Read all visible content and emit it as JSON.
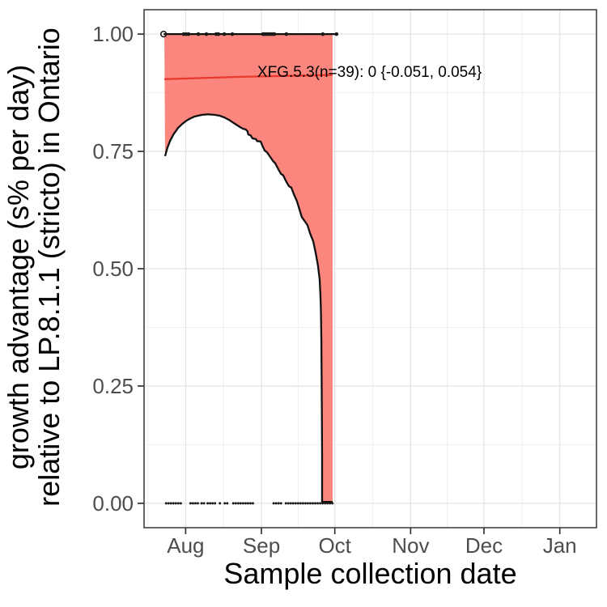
{
  "figure_titles": {
    "y_axis_title": "growth advantage (s% per day)\nrelative to LP.8.1.1 (stricto) in Ontario",
    "x_axis_title": "Sample collection date"
  },
  "chart_data": {
    "type": "line",
    "title": "",
    "xlabel": "Sample collection date",
    "ylabel": "growth advantage (s% per day) relative to LP.8.1.1 (stricto) in Ontario",
    "x_tick_labels": [
      "Aug",
      "Sep",
      "Oct",
      "Nov",
      "Dec",
      "Jan"
    ],
    "x_tick_days": [
      17,
      48,
      78,
      109,
      139,
      170
    ],
    "x_minor_days": [
      1.5,
      32.5,
      63,
      93.5,
      124,
      154.5
    ],
    "xlim_days": [
      0,
      185
    ],
    "x_day0": "Jul 15",
    "y_tick_labels": [
      "0.00",
      "0.25",
      "0.50",
      "0.75",
      "1.00"
    ],
    "y_tick_values": [
      0,
      0.25,
      0.5,
      0.75,
      1
    ],
    "y_minor_values": [
      0.125,
      0.375,
      0.625,
      0.875
    ],
    "ylim": [
      -0.052,
      1.052
    ],
    "grid": true,
    "legend": false,
    "annotation": {
      "text": "XFG.5.3(n=39): 0 {-0.051, 0.054}",
      "x_day": 46.3,
      "y": 0.918
    },
    "estimate": {
      "variant": "XFG.5.3",
      "n": 39,
      "value": 0,
      "ci_low": -0.051,
      "ci_high": 0.054,
      "reference": "LP.8.1.1 (stricto)",
      "region": "Ontario"
    },
    "fit_line": [
      [
        8.3,
        0.904
      ],
      [
        40,
        0.909
      ],
      [
        77.1,
        0.913
      ]
    ],
    "ribbon": {
      "x_start_day": 8.3,
      "x_end_day": 77.1,
      "upper_y": 1.0,
      "lower_points": [
        [
          8.6,
          0.74
        ],
        [
          9.5,
          0.757
        ],
        [
          10.6,
          0.772
        ],
        [
          12,
          0.786
        ],
        [
          13.9,
          0.8
        ],
        [
          15.5,
          0.808
        ],
        [
          17.2,
          0.815
        ],
        [
          18.8,
          0.82
        ],
        [
          20.5,
          0.824
        ],
        [
          22,
          0.826
        ],
        [
          23.8,
          0.828
        ],
        [
          26,
          0.829
        ],
        [
          28.8,
          0.828
        ],
        [
          31,
          0.826
        ],
        [
          33,
          0.822
        ],
        [
          34.8,
          0.817
        ],
        [
          36.5,
          0.811
        ],
        [
          38,
          0.806
        ],
        [
          39.5,
          0.801
        ],
        [
          40.6,
          0.798
        ],
        [
          41.5,
          0.797
        ],
        [
          42.3,
          0.793
        ],
        [
          42.6,
          0.786
        ],
        [
          43.6,
          0.784
        ],
        [
          44.3,
          0.778
        ],
        [
          45.8,
          0.776
        ],
        [
          46.2,
          0.772
        ],
        [
          47.7,
          0.771
        ],
        [
          48.4,
          0.762
        ],
        [
          49.3,
          0.752
        ],
        [
          50.3,
          0.748
        ],
        [
          51.6,
          0.738
        ],
        [
          52.8,
          0.729
        ],
        [
          53.6,
          0.725
        ],
        [
          54.8,
          0.713
        ],
        [
          56,
          0.702
        ],
        [
          56.9,
          0.699
        ],
        [
          58,
          0.687
        ],
        [
          59.2,
          0.676
        ],
        [
          60.2,
          0.673
        ],
        [
          61.3,
          0.658
        ],
        [
          62.5,
          0.644
        ],
        [
          63.5,
          0.627
        ],
        [
          64.5,
          0.61
        ],
        [
          65.6,
          0.602
        ],
        [
          66.8,
          0.593
        ],
        [
          67.9,
          0.575
        ],
        [
          69.2,
          0.558
        ],
        [
          70.2,
          0.533
        ],
        [
          71.1,
          0.507
        ],
        [
          71.8,
          0.477
        ],
        [
          72.1,
          0.445
        ],
        [
          72.3,
          0.415
        ],
        [
          72.5,
          0.347
        ],
        [
          72.6,
          0.275
        ],
        [
          72.7,
          0.2
        ],
        [
          72.8,
          0.1
        ],
        [
          72.8,
          0.003
        ],
        [
          77.1,
          0.003
        ]
      ]
    },
    "top_line": {
      "x_start_day": 8,
      "x_end_day": 79.2,
      "y": 1.0
    },
    "open_point": {
      "day": 8,
      "y": 1.0
    },
    "points_top_days": [
      16.2,
      17.2,
      18.2,
      22.2,
      25.5,
      29.5,
      30.4,
      32.8,
      36.1,
      48.6,
      49.3,
      50.1,
      50.9,
      51.7,
      52.5,
      53.3,
      58.2,
      73.1,
      78.7
    ],
    "points_bottom_days": [
      9,
      10,
      11,
      12,
      13,
      14,
      15,
      19,
      20,
      21,
      22,
      23.5,
      24.5,
      26,
      27,
      28,
      29,
      31,
      33,
      34,
      36.5,
      37.5,
      38.5,
      39.5,
      40.5,
      41.5,
      42.5,
      43.5,
      44.5,
      53,
      54,
      55,
      56,
      58,
      59,
      60,
      61,
      62,
      63,
      64,
      65,
      66,
      67,
      68,
      69,
      70,
      71,
      72,
      73,
      74,
      75,
      76,
      77
    ],
    "colors": {
      "ribbon": "#FB867D",
      "fit_line": "#E8392F",
      "curve": "#111111",
      "points": "#1A1A1A",
      "grid_major": "#E4E4E4",
      "grid_minor": "#F1F1F1",
      "panel_border": "#4D4D4D",
      "tick": "#333333",
      "tick_label": "#4D4D4D",
      "axis_title": "#000000"
    }
  }
}
